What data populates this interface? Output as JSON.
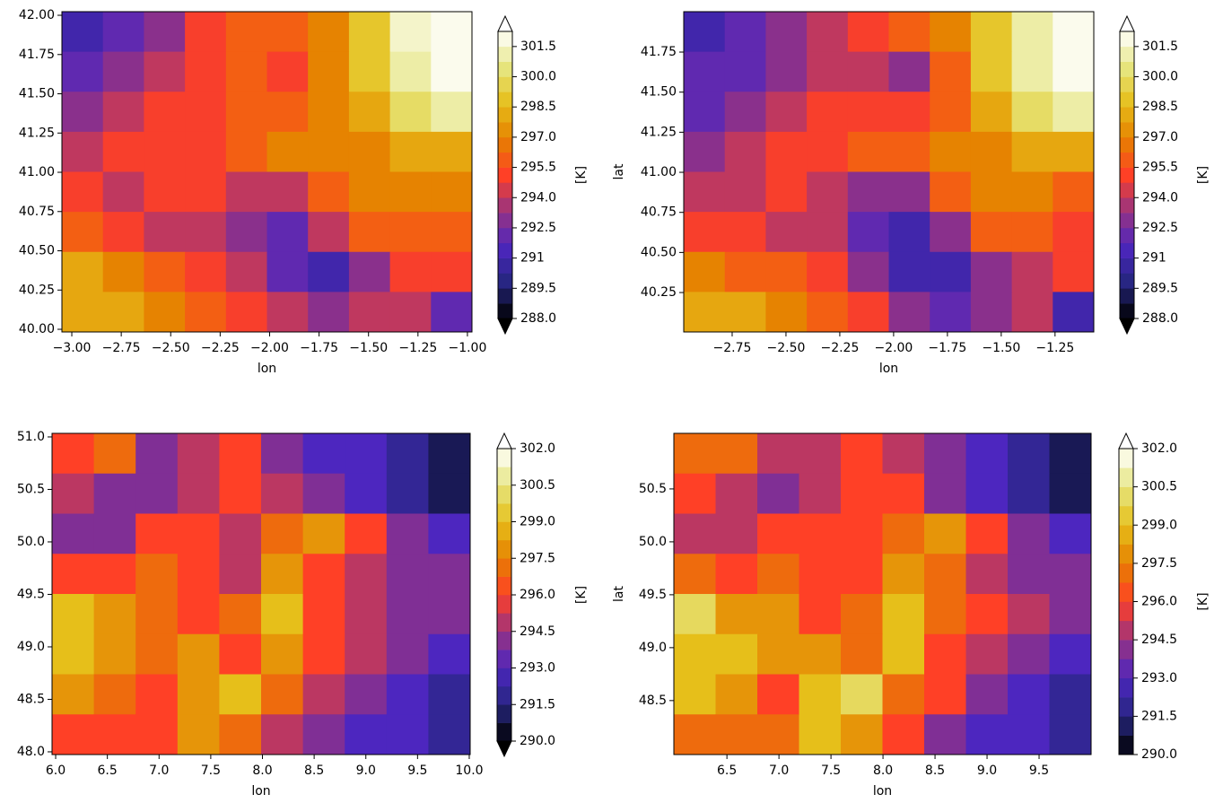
{
  "chart_data": [
    {
      "type": "heatmap",
      "xlabel": "lon",
      "xlim": [
        -3.05,
        -0.977
      ],
      "ylim": [
        39.983,
        42.023
      ],
      "xticks": [
        {
          "value": -3.0,
          "label": "−3.00"
        },
        {
          "value": -2.75,
          "label": "−2.75"
        },
        {
          "value": -2.5,
          "label": "−2.50"
        },
        {
          "value": -2.25,
          "label": "−2.25"
        },
        {
          "value": -2.0,
          "label": "−2.00"
        },
        {
          "value": -1.75,
          "label": "−1.75"
        },
        {
          "value": -1.5,
          "label": "−1.50"
        },
        {
          "value": -1.25,
          "label": "−1.25"
        },
        {
          "value": -1.0,
          "label": "−1.00"
        }
      ],
      "yticks": [
        {
          "value": 40.0,
          "label": "40.00"
        },
        40.25,
        {
          "value": 40.5,
          "label": "40.50"
        },
        40.75,
        {
          "value": 41.0,
          "label": "41.00"
        },
        41.25,
        {
          "value": 41.5,
          "label": "41.50"
        },
        41.75,
        {
          "value": 42.0,
          "label": "42.00"
        }
      ],
      "values": [
        [
          291,
          292,
          293,
          295,
          296,
          296,
          297,
          299,
          301.5,
          302
        ],
        [
          292,
          293,
          294,
          295,
          296,
          295,
          297,
          299,
          301,
          302
        ],
        [
          293,
          294,
          295,
          295,
          296,
          296,
          297,
          298,
          300,
          301
        ],
        [
          294,
          295,
          295,
          295,
          296,
          297,
          297,
          297,
          298,
          298
        ],
        [
          295,
          294,
          295,
          295,
          294,
          294,
          296,
          297,
          297,
          297
        ],
        [
          296,
          295,
          294,
          294,
          293,
          292,
          294,
          296,
          296,
          296
        ],
        [
          298,
          297,
          296,
          295,
          294,
          292,
          291,
          293,
          295,
          295
        ],
        [
          298,
          298,
          297,
          296,
          295,
          294,
          293,
          294,
          294,
          292
        ]
      ],
      "colorbar": {
        "label": "[K]",
        "lim": [
          288.0,
          302.25
        ],
        "extend": "both",
        "ticks": [
          {
            "value": 288.0,
            "label": "288.0"
          },
          289.5,
          291.0,
          292.5,
          {
            "value": 294.0,
            "label": "294.0"
          },
          295.5,
          {
            "value": 297.0,
            "label": "297.0"
          },
          298.5,
          {
            "value": 300.0,
            "label": "300.0"
          },
          301.5
        ]
      },
      "colormap": [
        "#000000",
        "#262680",
        "#4d26bf",
        "#9933 80",
        "#ff4026",
        "#e68000",
        "#e6bf1a",
        "#e6e680",
        "#ffffff"
      ]
    },
    {
      "type": "heatmap",
      "xlabel": "lon",
      "ylabel": "lat",
      "xlim": [
        -2.975,
        -1.07
      ],
      "ylim": [
        40.004,
        42.002
      ],
      "xticks": [
        {
          "value": -2.75,
          "label": "−2.75"
        },
        {
          "value": -2.5,
          "label": "−2.50"
        },
        {
          "value": -2.25,
          "label": "−2.25"
        },
        {
          "value": -2.0,
          "label": "−2.00"
        },
        {
          "value": -1.75,
          "label": "−1.75"
        },
        {
          "value": -1.5,
          "label": "−1.50"
        },
        {
          "value": -1.25,
          "label": "−1.25"
        }
      ],
      "yticks": [
        40.25,
        {
          "value": 40.5,
          "label": "40.50"
        },
        40.75,
        {
          "value": 41.0,
          "label": "41.00"
        },
        41.25,
        {
          "value": 41.5,
          "label": "41.50"
        },
        41.75
      ],
      "values": [
        [
          291,
          292,
          293,
          294,
          295,
          296,
          297,
          299,
          301,
          302
        ],
        [
          292,
          292,
          293,
          294,
          294,
          293,
          296,
          299,
          301,
          302
        ],
        [
          292,
          293,
          294,
          295,
          295,
          295,
          296,
          298,
          300,
          301
        ],
        [
          293,
          294,
          295,
          295,
          296,
          296,
          297,
          297,
          298,
          298
        ],
        [
          294,
          294,
          295,
          294,
          293,
          293,
          296,
          297,
          297,
          296
        ],
        [
          295,
          295,
          294,
          294,
          292,
          291,
          293,
          296,
          296,
          295
        ],
        [
          297,
          296,
          296,
          295,
          293,
          291,
          291,
          293,
          294,
          295
        ],
        [
          298,
          298,
          297,
          296,
          295,
          293,
          292,
          293,
          294,
          291
        ]
      ],
      "colorbar": {
        "label": "[K]",
        "lim": [
          288.0,
          302.25
        ],
        "extend": "both",
        "ticks": [
          {
            "value": 288.0,
            "label": "288.0"
          },
          289.5,
          291.0,
          292.5,
          {
            "value": 294.0,
            "label": "294.0"
          },
          295.5,
          {
            "value": 297.0,
            "label": "297.0"
          },
          298.5,
          {
            "value": 300.0,
            "label": "300.0"
          },
          301.5
        ]
      },
      "colormap": [
        "#000000",
        "#262680",
        "#4d26bf",
        "#993380",
        "#ff4026",
        "#e68000",
        "#e6bf1a",
        "#e6e680",
        "#ffffff"
      ]
    },
    {
      "type": "heatmap",
      "xlabel": "lon",
      "xlim": [
        5.965,
        10.009
      ],
      "ylim": [
        47.974,
        51.034
      ],
      "xticks": [
        {
          "value": 6.0,
          "label": "6.0"
        },
        6.5,
        {
          "value": 7.0,
          "label": "7.0"
        },
        7.5,
        {
          "value": 8.0,
          "label": "8.0"
        },
        8.5,
        {
          "value": 9.0,
          "label": "9.0"
        },
        9.5,
        {
          "value": 10.0,
          "label": "10.0"
        }
      ],
      "yticks": [
        {
          "value": 48.0,
          "label": "48.0"
        },
        48.5,
        {
          "value": 49.0,
          "label": "49.0"
        },
        49.5,
        {
          "value": 50.0,
          "label": "50.0"
        },
        50.5,
        {
          "value": 51.0,
          "label": "51.0"
        }
      ],
      "values": [
        [
          296,
          297,
          294,
          295,
          296,
          294,
          293,
          293,
          292,
          291
        ],
        [
          295,
          294,
          294,
          295,
          296,
          295,
          294,
          293,
          292,
          291
        ],
        [
          294,
          294,
          296,
          296,
          295,
          297,
          298,
          296,
          294,
          293
        ],
        [
          296,
          296,
          297,
          296,
          295,
          298,
          296,
          295,
          294,
          294
        ],
        [
          299,
          298,
          297,
          296,
          297,
          299,
          296,
          295,
          294,
          294
        ],
        [
          299,
          298,
          297,
          298,
          296,
          298,
          296,
          295,
          294,
          293
        ],
        [
          298,
          297,
          296,
          298,
          299,
          297,
          295,
          294,
          293,
          292
        ],
        [
          296,
          296,
          296,
          298,
          297,
          295,
          294,
          293,
          293,
          292
        ]
      ],
      "colorbar": {
        "label": "[K]",
        "lim": [
          290.0,
          302.0
        ],
        "extend": "both",
        "ticks": [
          {
            "value": 290.0,
            "label": "290.0"
          },
          291.5,
          {
            "value": 293.0,
            "label": "293.0"
          },
          294.5,
          {
            "value": 296.0,
            "label": "296.0"
          },
          297.5,
          {
            "value": 299.0,
            "label": "299.0"
          },
          300.5,
          {
            "value": 302.0,
            "label": "302.0"
          }
        ]
      },
      "colormap": [
        "#000000",
        "#262680",
        "#4d26bf",
        "#993380",
        "#ff4026",
        "#e68000",
        "#e6bf1a",
        "#e6e680",
        "#ffffff"
      ]
    },
    {
      "type": "heatmap",
      "xlabel": "lon",
      "ylabel": "lat",
      "xlim": [
        5.99,
        10.0
      ],
      "ylim": [
        47.99,
        51.025
      ],
      "xticks": [
        6.5,
        {
          "value": 7.0,
          "label": "7.0"
        },
        7.5,
        {
          "value": 8.0,
          "label": "8.0"
        },
        8.5,
        {
          "value": 9.0,
          "label": "9.0"
        },
        9.5
      ],
      "yticks": [
        48.5,
        {
          "value": 49.0,
          "label": "49.0"
        },
        49.5,
        {
          "value": 50.0,
          "label": "50.0"
        },
        50.5
      ],
      "values": [
        [
          297,
          297,
          295,
          295,
          296,
          295,
          294,
          293,
          292,
          291
        ],
        [
          296,
          295,
          294,
          295,
          296,
          296,
          294,
          293,
          292,
          291
        ],
        [
          295,
          295,
          296,
          296,
          296,
          297,
          298,
          296,
          294,
          293
        ],
        [
          297,
          296,
          297,
          296,
          296,
          298,
          297,
          295,
          294,
          294
        ],
        [
          300,
          298,
          298,
          296,
          297,
          299,
          297,
          296,
          295,
          294
        ],
        [
          299,
          299,
          298,
          298,
          297,
          299,
          296,
          295,
          294,
          293
        ],
        [
          299,
          298,
          296,
          299,
          300,
          297,
          296,
          294,
          293,
          292
        ],
        [
          297,
          297,
          297,
          299,
          298,
          296,
          294,
          293,
          293,
          292
        ]
      ],
      "colorbar": {
        "label": "[K]",
        "lim": [
          290.0,
          302.0
        ],
        "extend": "max",
        "ticks": [
          {
            "value": 290.0,
            "label": "290.0"
          },
          291.5,
          {
            "value": 293.0,
            "label": "293.0"
          },
          294.5,
          {
            "value": 296.0,
            "label": "296.0"
          },
          297.5,
          {
            "value": 299.0,
            "label": "299.0"
          },
          300.5,
          {
            "value": 302.0,
            "label": "302.0"
          }
        ]
      },
      "colormap": [
        "#000000",
        "#262680",
        "#4d26bf",
        "#993380",
        "#ff4026",
        "#e68000",
        "#e6bf1a",
        "#e6e680",
        "#ffffff"
      ]
    }
  ]
}
